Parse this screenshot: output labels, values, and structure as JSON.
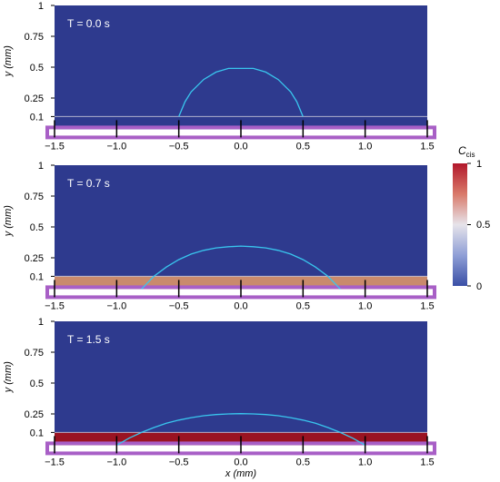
{
  "chart_data": {
    "type": "heatmap",
    "xlabel": "x (mm)",
    "x_ticks": [
      -1.5,
      -1.0,
      -0.5,
      0.0,
      0.5,
      1.0,
      1.5
    ],
    "x_tick_labels": [
      "−1.5",
      "−1.0",
      "−0.5",
      "0.0",
      "0.5",
      "1.0",
      "1.5"
    ],
    "xlim": [
      -1.5,
      1.5
    ],
    "ylabel": "y (mm)",
    "y_ticks": [
      0.1,
      0.25,
      0.5,
      0.75,
      1
    ],
    "y_tick_labels": [
      "0.1",
      "0.25",
      "0.5",
      "0.75",
      "1"
    ],
    "ylim": [
      0,
      1
    ],
    "film_height_mm": 0.1,
    "colors": {
      "background_field": "#2e3a8e",
      "droplet_outline": "#39c6ee",
      "base_bar": "#a85fc6",
      "colorbar_low": "#3a4fa6",
      "colorbar_mid": "#e6e3ea",
      "colorbar_high": "#b2182b"
    },
    "colorbar": {
      "label_main": "C",
      "label_sub": "cis",
      "ticks": [
        0,
        0.5,
        1
      ],
      "tick_labels": [
        "0",
        "0.5",
        "1"
      ]
    },
    "panels": [
      {
        "label": "T = 0.0 s",
        "time_s": 0.0,
        "film_color": "#2e3a8e",
        "film_concentration": 0.0,
        "droplet_profile": {
          "x": [
            -0.5,
            -0.45,
            -0.4,
            -0.3,
            -0.2,
            -0.1,
            0.0,
            0.1,
            0.2,
            0.3,
            0.4,
            0.45,
            0.5
          ],
          "y": [
            0.1,
            0.22,
            0.3,
            0.4,
            0.46,
            0.49,
            0.49,
            0.49,
            0.46,
            0.4,
            0.3,
            0.22,
            0.1
          ]
        }
      },
      {
        "label": "T = 0.7 s",
        "time_s": 0.7,
        "film_color": "#c98a6c",
        "film_concentration": 0.6,
        "droplet_profile": {
          "x": [
            -0.8,
            -0.7,
            -0.6,
            -0.5,
            -0.4,
            -0.3,
            -0.2,
            -0.1,
            0.0,
            0.1,
            0.2,
            0.3,
            0.4,
            0.5,
            0.6,
            0.7,
            0.8
          ],
          "y": [
            0.0,
            0.1,
            0.175,
            0.235,
            0.28,
            0.31,
            0.33,
            0.34,
            0.345,
            0.34,
            0.33,
            0.31,
            0.28,
            0.235,
            0.175,
            0.1,
            0.0
          ]
        }
      },
      {
        "label": "T = 1.5 s",
        "time_s": 1.5,
        "film_color": "#9a1322",
        "film_concentration": 0.95,
        "droplet_profile": {
          "x": [
            -1.0,
            -0.9,
            -0.8,
            -0.7,
            -0.6,
            -0.5,
            -0.4,
            -0.3,
            -0.2,
            -0.1,
            0.0,
            0.1,
            0.2,
            0.3,
            0.4,
            0.5,
            0.6,
            0.7,
            0.8,
            0.9,
            1.0
          ],
          "y": [
            0.0,
            0.055,
            0.1,
            0.14,
            0.175,
            0.2,
            0.22,
            0.235,
            0.245,
            0.25,
            0.252,
            0.25,
            0.245,
            0.235,
            0.22,
            0.2,
            0.175,
            0.14,
            0.1,
            0.055,
            0.0
          ]
        }
      }
    ]
  }
}
